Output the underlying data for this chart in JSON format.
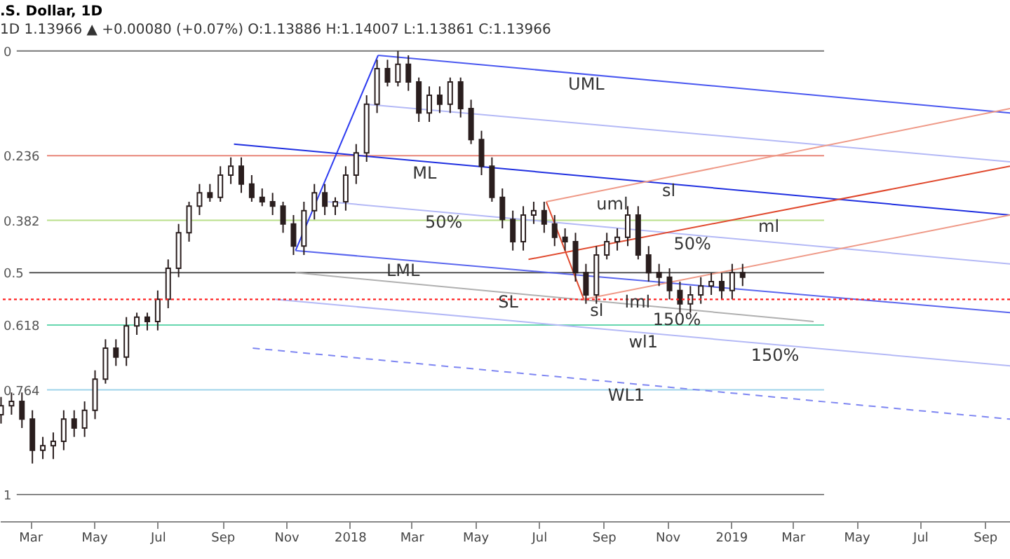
{
  "chart_data": {
    "type": "candlestick",
    "title": ".S. Dollar, 1D",
    "subtitle": "1D 1.13966 ▲ +0.00080 (+0.07%) O:1.13886 H:1.14007 L:1.13861 C:1.13966",
    "color": "#2a1e1e",
    "x": [
      "2017-02-01",
      "2017-02-11",
      "2017-02-21",
      "2017-03-03",
      "2017-03-13",
      "2017-03-23",
      "2017-04-02",
      "2017-04-12",
      "2017-04-22",
      "2017-05-02",
      "2017-05-12",
      "2017-05-22",
      "2017-06-01",
      "2017-06-11",
      "2017-06-21",
      "2017-07-01",
      "2017-07-11",
      "2017-07-21",
      "2017-07-31",
      "2017-08-10",
      "2017-08-20",
      "2017-08-30",
      "2017-09-09",
      "2017-09-19",
      "2017-09-29",
      "2017-10-09",
      "2017-10-19",
      "2017-10-29",
      "2017-11-08",
      "2017-11-18",
      "2017-11-28",
      "2017-12-08",
      "2017-12-18",
      "2017-12-28",
      "2018-01-07",
      "2018-01-17",
      "2018-01-27",
      "2018-02-06",
      "2018-02-16",
      "2018-02-26",
      "2018-03-08",
      "2018-03-18",
      "2018-03-28",
      "2018-04-07",
      "2018-04-17",
      "2018-04-27",
      "2018-05-07",
      "2018-05-17",
      "2018-05-27",
      "2018-06-06",
      "2018-06-16",
      "2018-06-26",
      "2018-07-06",
      "2018-07-16",
      "2018-07-26",
      "2018-08-05",
      "2018-08-15",
      "2018-08-25",
      "2018-09-04",
      "2018-09-14",
      "2018-09-24",
      "2018-10-04",
      "2018-10-14",
      "2018-10-24",
      "2018-11-03",
      "2018-11-13",
      "2018-11-23",
      "2018-12-03",
      "2018-12-13",
      "2018-12-23",
      "2019-01-02",
      "2019-01-12"
    ],
    "ohlc": [
      [
        0.82,
        0.84,
        0.78,
        0.8
      ],
      [
        0.8,
        0.82,
        0.77,
        0.79
      ],
      [
        0.79,
        0.85,
        0.77,
        0.83
      ],
      [
        0.83,
        0.93,
        0.81,
        0.9
      ],
      [
        0.9,
        0.92,
        0.87,
        0.89
      ],
      [
        0.89,
        0.92,
        0.86,
        0.88
      ],
      [
        0.88,
        0.9,
        0.81,
        0.83
      ],
      [
        0.83,
        0.87,
        0.81,
        0.85
      ],
      [
        0.85,
        0.87,
        0.79,
        0.81
      ],
      [
        0.81,
        0.83,
        0.72,
        0.74
      ],
      [
        0.74,
        0.75,
        0.65,
        0.67
      ],
      [
        0.67,
        0.71,
        0.65,
        0.69
      ],
      [
        0.69,
        0.71,
        0.6,
        0.62
      ],
      [
        0.62,
        0.64,
        0.59,
        0.6
      ],
      [
        0.6,
        0.63,
        0.59,
        0.61
      ],
      [
        0.61,
        0.63,
        0.54,
        0.56
      ],
      [
        0.56,
        0.58,
        0.47,
        0.49
      ],
      [
        0.49,
        0.51,
        0.39,
        0.41
      ],
      [
        0.41,
        0.43,
        0.34,
        0.35
      ],
      [
        0.35,
        0.37,
        0.3,
        0.32
      ],
      [
        0.32,
        0.34,
        0.3,
        0.33
      ],
      [
        0.33,
        0.34,
        0.26,
        0.28
      ],
      [
        0.28,
        0.3,
        0.24,
        0.26
      ],
      [
        0.26,
        0.32,
        0.24,
        0.3
      ],
      [
        0.3,
        0.34,
        0.28,
        0.33
      ],
      [
        0.33,
        0.35,
        0.31,
        0.34
      ],
      [
        0.34,
        0.37,
        0.32,
        0.35
      ],
      [
        0.35,
        0.41,
        0.34,
        0.39
      ],
      [
        0.39,
        0.46,
        0.37,
        0.44
      ],
      [
        0.44,
        0.46,
        0.34,
        0.36
      ],
      [
        0.36,
        0.38,
        0.3,
        0.32
      ],
      [
        0.32,
        0.37,
        0.3,
        0.35
      ],
      [
        0.35,
        0.37,
        0.33,
        0.34
      ],
      [
        0.34,
        0.36,
        0.26,
        0.28
      ],
      [
        0.28,
        0.3,
        0.21,
        0.23
      ],
      [
        0.23,
        0.25,
        0.1,
        0.12
      ],
      [
        0.12,
        0.14,
        0.02,
        0.04
      ],
      [
        0.04,
        0.08,
        0.02,
        0.07
      ],
      [
        0.07,
        0.08,
        0.0,
        0.03
      ],
      [
        0.03,
        0.09,
        0.01,
        0.07
      ],
      [
        0.07,
        0.16,
        0.06,
        0.14
      ],
      [
        0.14,
        0.16,
        0.08,
        0.1
      ],
      [
        0.1,
        0.14,
        0.08,
        0.12
      ],
      [
        0.12,
        0.14,
        0.06,
        0.07
      ],
      [
        0.07,
        0.15,
        0.06,
        0.13
      ],
      [
        0.13,
        0.21,
        0.11,
        0.2
      ],
      [
        0.2,
        0.28,
        0.18,
        0.26
      ],
      [
        0.26,
        0.34,
        0.24,
        0.33
      ],
      [
        0.33,
        0.4,
        0.31,
        0.38
      ],
      [
        0.38,
        0.45,
        0.36,
        0.43
      ],
      [
        0.43,
        0.45,
        0.35,
        0.37
      ],
      [
        0.37,
        0.39,
        0.34,
        0.36
      ],
      [
        0.36,
        0.41,
        0.34,
        0.39
      ],
      [
        0.39,
        0.44,
        0.37,
        0.42
      ],
      [
        0.42,
        0.45,
        0.4,
        0.43
      ],
      [
        0.43,
        0.52,
        0.41,
        0.5
      ],
      [
        0.5,
        0.57,
        0.48,
        0.55
      ],
      [
        0.55,
        0.57,
        0.44,
        0.46
      ],
      [
        0.46,
        0.47,
        0.41,
        0.43
      ],
      [
        0.43,
        0.45,
        0.4,
        0.42
      ],
      [
        0.42,
        0.44,
        0.35,
        0.37
      ],
      [
        0.37,
        0.47,
        0.35,
        0.46
      ],
      [
        0.46,
        0.52,
        0.44,
        0.5
      ],
      [
        0.5,
        0.53,
        0.48,
        0.51
      ],
      [
        0.51,
        0.56,
        0.49,
        0.54
      ],
      [
        0.54,
        0.59,
        0.52,
        0.57
      ],
      [
        0.57,
        0.59,
        0.53,
        0.55
      ],
      [
        0.55,
        0.57,
        0.51,
        0.53
      ],
      [
        0.53,
        0.55,
        0.5,
        0.52
      ],
      [
        0.52,
        0.56,
        0.5,
        0.54
      ],
      [
        0.54,
        0.56,
        0.48,
        0.5
      ],
      [
        0.5,
        0.53,
        0.48,
        0.51
      ]
    ],
    "series": [
      {
        "type": "line",
        "color": "#787878",
        "x": [
          "2017-02-16",
          "2019-03-31"
        ],
        "values": [
          0,
          0
        ]
      },
      {
        "type": "line",
        "color": "#e8877a",
        "x": [
          "2017-03-17",
          "2019-03-31"
        ],
        "values": [
          0.236,
          0.236
        ]
      },
      {
        "type": "line",
        "color": "#b9e08a",
        "x": [
          "2017-03-17",
          "2019-03-31"
        ],
        "values": [
          0.382,
          0.382
        ]
      },
      {
        "type": "line",
        "color": "#555555",
        "x": [
          "2017-02-28",
          "2019-03-31"
        ],
        "values": [
          0.5,
          0.5
        ]
      },
      {
        "type": "line",
        "color": "#66d6ae",
        "x": [
          "2017-03-17",
          "2019-03-31"
        ],
        "values": [
          0.618,
          0.618
        ]
      },
      {
        "type": "line",
        "color": "#9fd3ea",
        "x": [
          "2017-03-17",
          "2019-03-31"
        ],
        "values": [
          0.764,
          0.764
        ]
      },
      {
        "type": "line",
        "color": "#888888",
        "x": [
          "2017-02-16",
          "2019-03-31"
        ],
        "values": [
          1,
          1
        ]
      },
      {
        "type": "line",
        "color": "#2e3cf0",
        "x": [
          "2017-11-10",
          "2018-01-28"
        ],
        "values": [
          0.45,
          0.01
        ]
      },
      {
        "type": "line",
        "color": "#4a58f0",
        "x": [
          "2018-01-28",
          "2019-09-25"
        ],
        "values": [
          0.01,
          0.14
        ]
      },
      {
        "type": "line",
        "color": "#1f2fe0",
        "x": [
          "2017-09-12",
          "2019-09-25"
        ],
        "values": [
          0.21,
          0.37
        ]
      },
      {
        "type": "line",
        "color": "#5a66ee",
        "x": [
          "2017-11-10",
          "2019-09-25"
        ],
        "values": [
          0.45,
          0.59
        ]
      },
      {
        "type": "line",
        "color": "#b4b9f6",
        "x": [
          "2018-01-16",
          "2019-09-25"
        ],
        "values": [
          0.12,
          0.25
        ]
      },
      {
        "type": "line",
        "color": "#b4b9f6",
        "x": [
          "2017-12-11",
          "2019-09-25"
        ],
        "values": [
          0.34,
          0.48
        ]
      },
      {
        "type": "line",
        "color": "#b4b9f6",
        "x": [
          "2017-10-21",
          "2019-09-25"
        ],
        "values": [
          0.56,
          0.71
        ]
      },
      {
        "type": "line",
        "color": "#7e86f2",
        "line_style": "dashed",
        "x": [
          "2017-09-30",
          "2019-09-25"
        ],
        "values": [
          0.67,
          0.83
        ]
      },
      {
        "type": "line",
        "color": "#b0b0b0",
        "x": [
          "2017-11-10",
          "2019-03-21"
        ],
        "values": [
          0.5,
          0.61
        ]
      },
      {
        "type": "line",
        "color": "#e0492e",
        "x": [
          "2018-07-08",
          "2018-08-13"
        ],
        "values": [
          0.34,
          0.56
        ]
      },
      {
        "type": "line",
        "color": "#e0492e",
        "x": [
          "2018-06-21",
          "2019-09-25"
        ],
        "values": [
          0.47,
          0.26
        ]
      },
      {
        "type": "line",
        "color": "#ef9a88",
        "x": [
          "2018-07-08",
          "2019-09-25"
        ],
        "values": [
          0.34,
          0.13
        ]
      },
      {
        "type": "line",
        "color": "#ef9a88",
        "x": [
          "2018-08-13",
          "2019-09-25"
        ],
        "values": [
          0.56,
          0.37
        ]
      }
    ],
    "ref_lines": [
      {
        "axis": "y",
        "value": 0.56,
        "color": "#ff2020",
        "line_style": "dotted"
      }
    ],
    "annotations": [
      {
        "text": "UML",
        "x": "2018-07-29",
        "y": 0.05
      },
      {
        "text": "ML",
        "x": "2018-03-02",
        "y": 0.25
      },
      {
        "text": "50%",
        "x": "2018-03-14",
        "y": 0.36
      },
      {
        "text": "LML",
        "x": "2018-02-05",
        "y": 0.47
      },
      {
        "text": "SL",
        "x": "2018-05-23",
        "y": 0.54
      },
      {
        "text": "uml",
        "x": "2018-08-25",
        "y": 0.32
      },
      {
        "text": "sl",
        "x": "2018-10-27",
        "y": 0.29
      },
      {
        "text": "ml",
        "x": "2019-01-27",
        "y": 0.37
      },
      {
        "text": "50%",
        "x": "2018-11-07",
        "y": 0.41
      },
      {
        "text": "lml",
        "x": "2018-09-21",
        "y": 0.54
      },
      {
        "text": "sl",
        "x": "2018-08-19",
        "y": 0.56
      },
      {
        "text": "150%",
        "x": "2018-10-18",
        "y": 0.58
      },
      {
        "text": "wl1",
        "x": "2018-09-25",
        "y": 0.63
      },
      {
        "text": "150%",
        "x": "2019-01-20",
        "y": 0.66
      },
      {
        "text": "WL1",
        "x": "2018-09-05",
        "y": 0.75
      }
    ],
    "xlim": [
      "2017-01-31",
      "2019-09-25"
    ],
    "xticks": [
      {
        "value": "2017-03-01",
        "label": "Mar"
      },
      {
        "value": "2017-05-01",
        "label": "May"
      },
      {
        "value": "2017-07-01",
        "label": "Jul"
      },
      {
        "value": "2017-09-01",
        "label": "Sep"
      },
      {
        "value": "2017-11-01",
        "label": "Nov"
      },
      {
        "value": "2018-01-01",
        "label": "2018"
      },
      {
        "value": "2018-03-01",
        "label": "Mar"
      },
      {
        "value": "2018-05-01",
        "label": "May"
      },
      {
        "value": "2018-07-01",
        "label": "Jul"
      },
      {
        "value": "2018-09-01",
        "label": "Sep"
      },
      {
        "value": "2018-11-01",
        "label": "Nov"
      },
      {
        "value": "2019-01-01",
        "label": "2019"
      },
      {
        "value": "2019-03-01",
        "label": "Mar"
      },
      {
        "value": "2019-05-01",
        "label": "May"
      },
      {
        "value": "2019-07-01",
        "label": "Jul"
      },
      {
        "value": "2019-09-01",
        "label": "Sep"
      }
    ],
    "ylim": [
      1.06,
      -0.02
    ],
    "yticks": [
      0,
      0.236,
      0.382,
      0.5,
      0.618,
      0.764,
      1
    ],
    "grid": false
  }
}
